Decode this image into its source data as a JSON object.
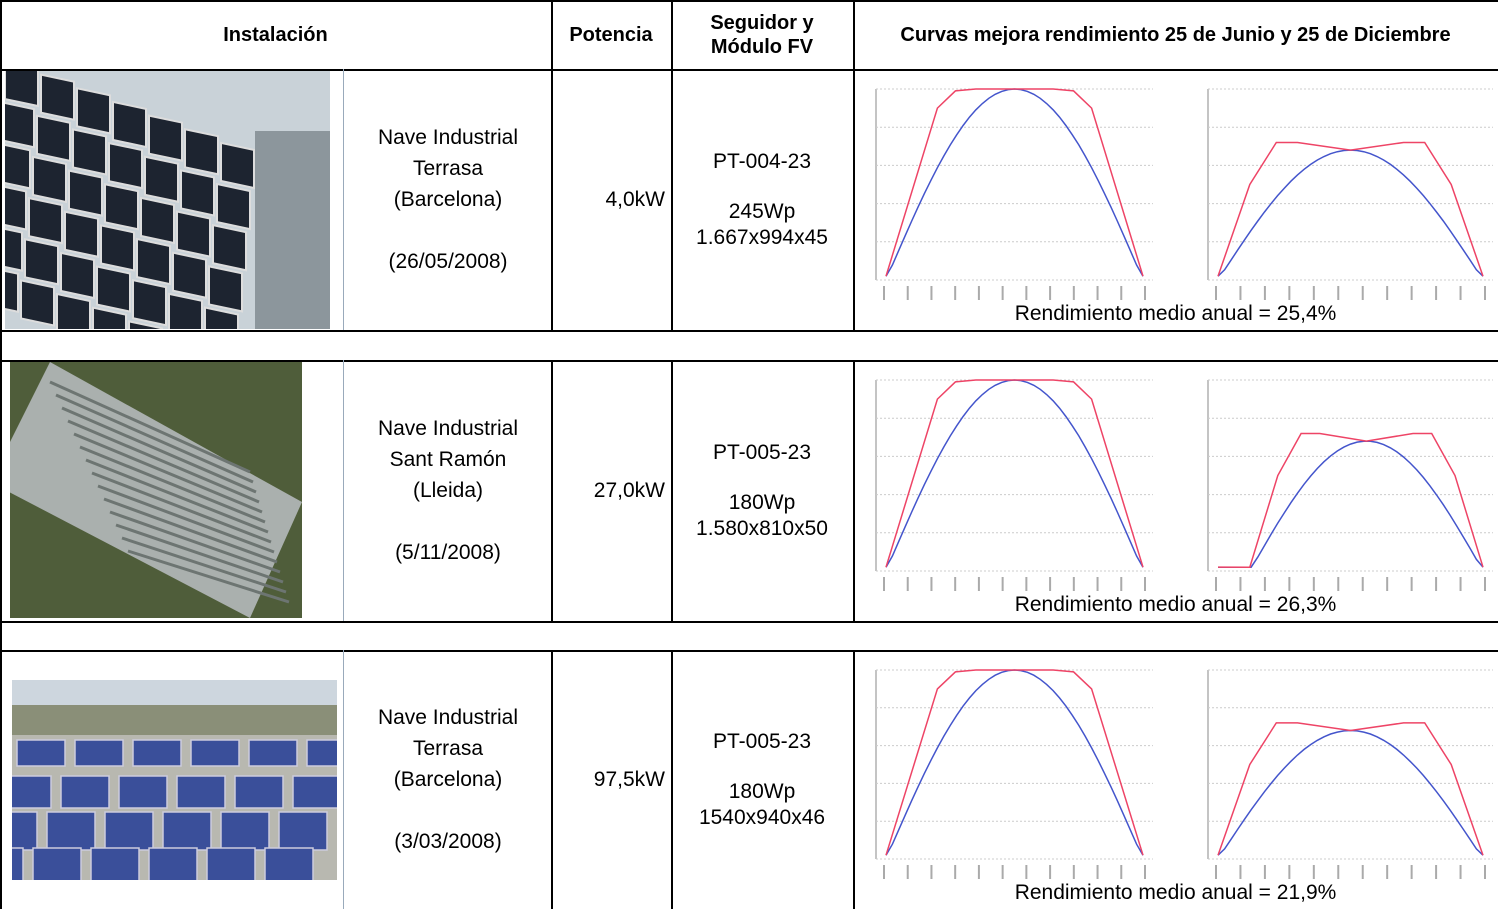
{
  "table": {
    "header": [
      "Instalación",
      "Potencia",
      "Seguidor y Módulo FV",
      "Curvas mejora rendimiento 25 de Junio y 25 de Diciembre"
    ],
    "rows": [
      {
        "name": "Nave Industrial",
        "location": "Terrasa",
        "province": "(Barcelona)",
        "date": "(26/05/2008)",
        "power": "4,0kW",
        "tracker": "PT-004-23",
        "module_power": "245Wp",
        "module_size": "1.667x994x45",
        "performance": "Rendimiento medio anual = 25,4%"
      },
      {
        "name": "Nave Industrial",
        "location": "Sant Ramón",
        "province": "(Lleida)",
        "date": "(5/11/2008)",
        "power": "27,0kW",
        "tracker": "PT-005-23",
        "module_power": "180Wp",
        "module_size": "1.580x810x50",
        "performance": "Rendimiento medio anual = 26,3%"
      },
      {
        "name": "Nave Industrial",
        "location": "Terrasa",
        "province": "(Barcelona)",
        "date": "(3/03/2008)",
        "power": "97,5kW",
        "tracker": "PT-005-23",
        "module_power": "180Wp",
        "module_size": "1540x940x46",
        "performance": "Rendimiento medio anual = 21,9%"
      }
    ]
  }
}
